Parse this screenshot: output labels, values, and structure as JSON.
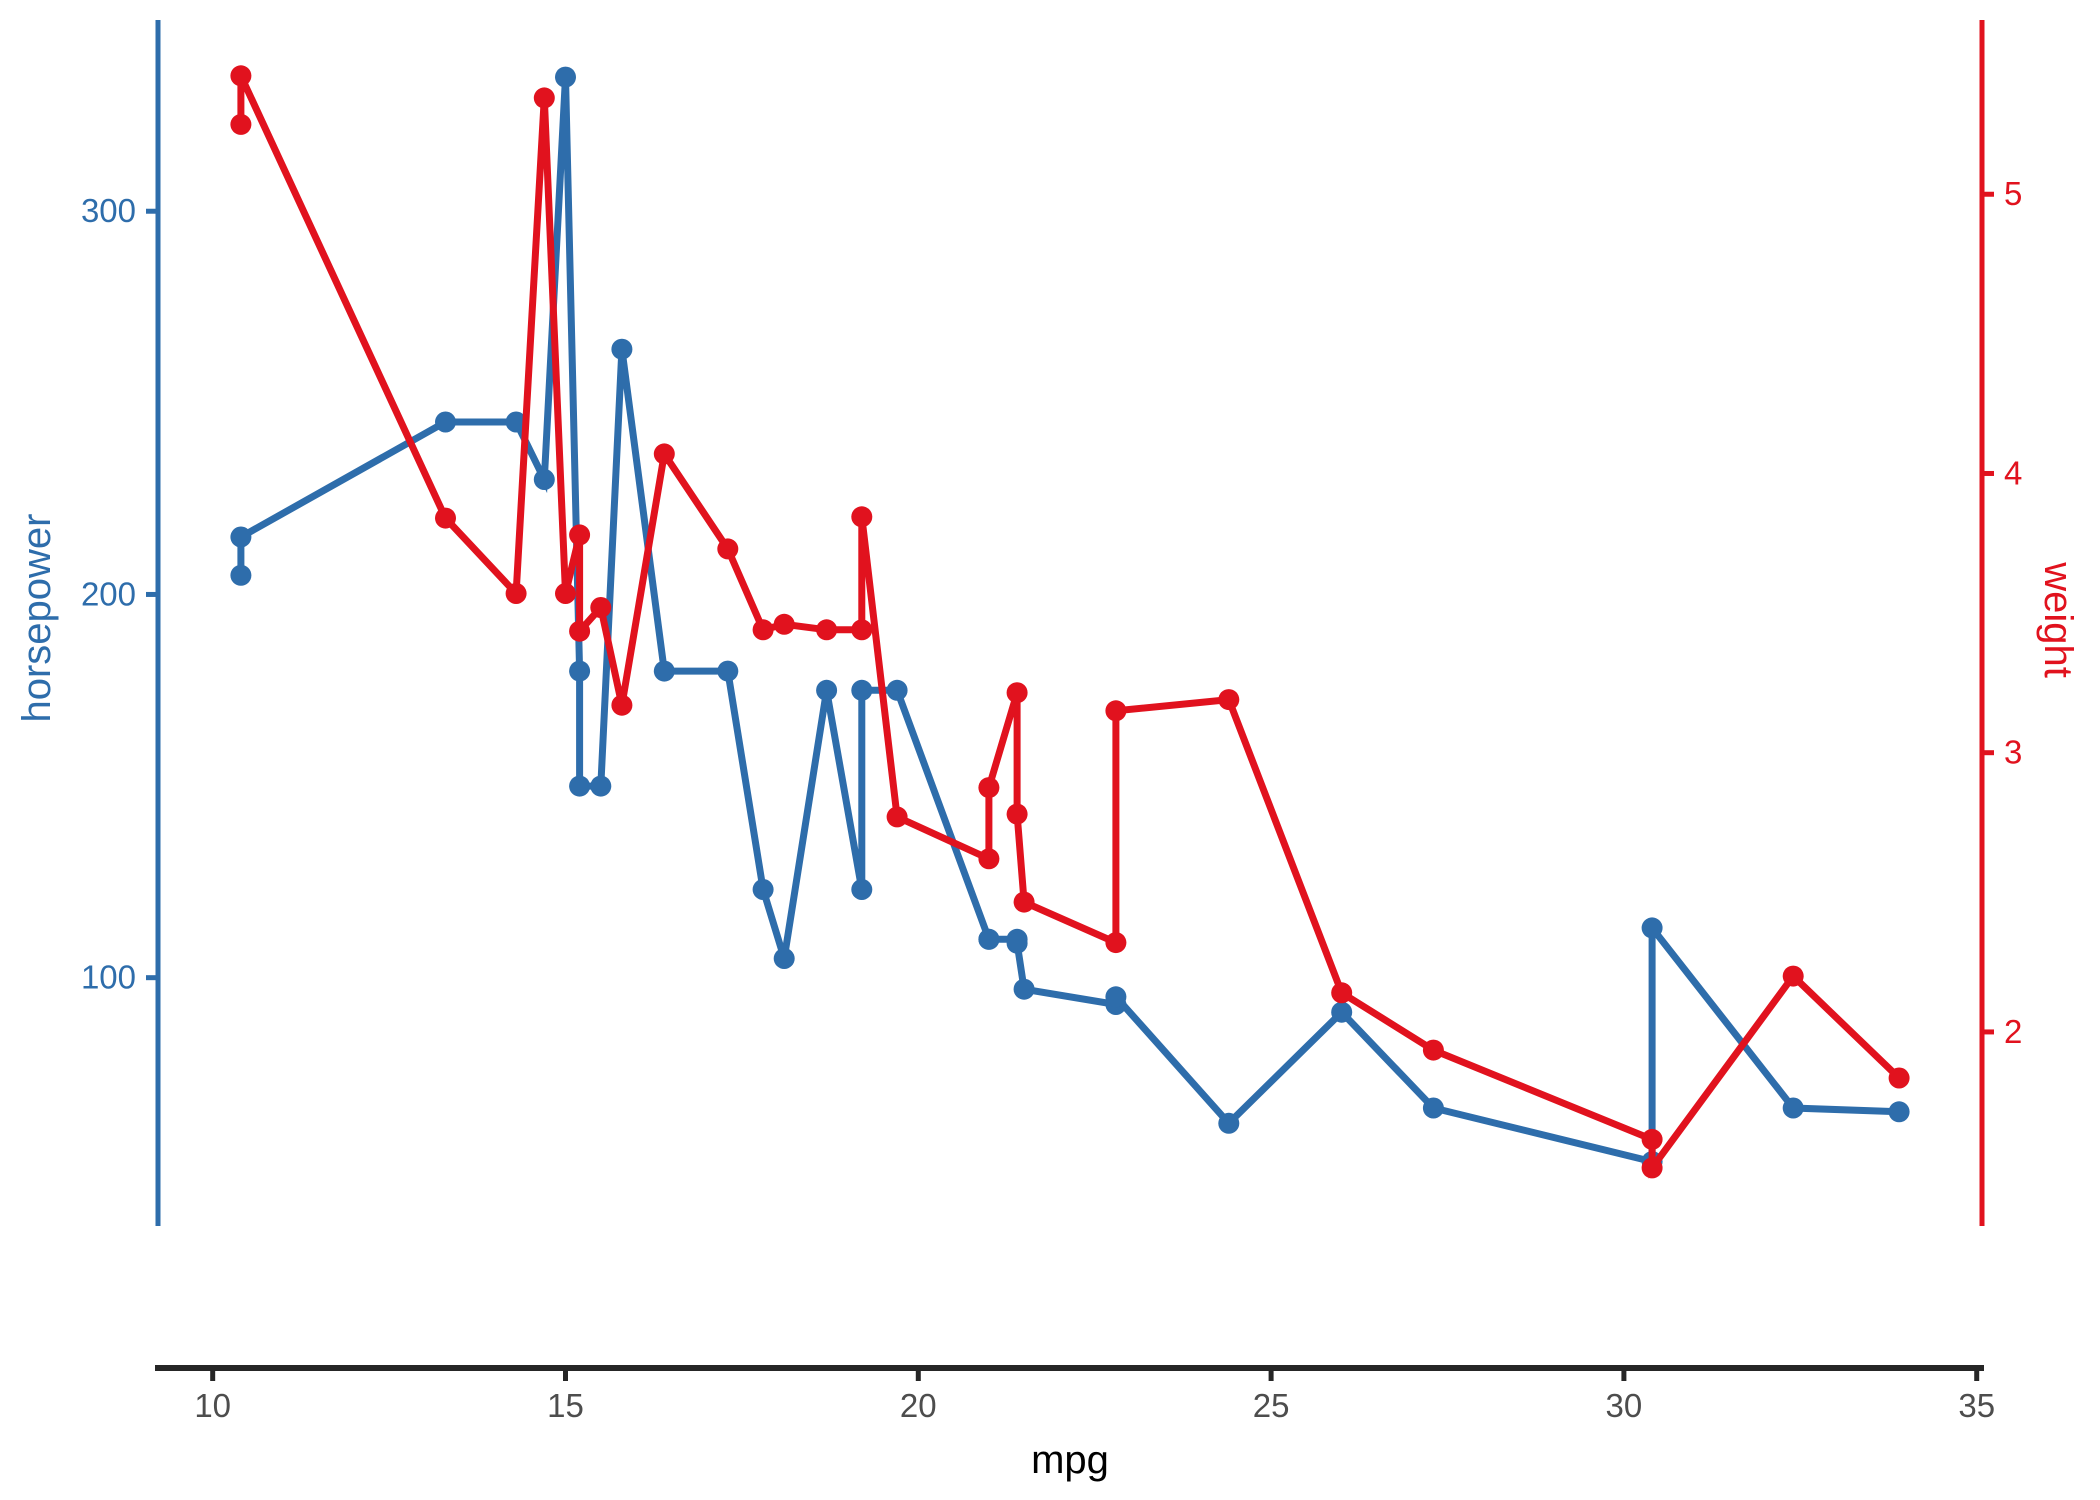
{
  "chart_data": {
    "type": "line",
    "title": "",
    "xlabel": "mpg",
    "grid": false,
    "legend": "none",
    "background": "#ffffff",
    "x_axis": {
      "label": "mpg",
      "ticks": [
        10,
        15,
        20,
        25,
        30,
        35
      ],
      "domain": [
        9.225,
        35.075
      ],
      "line_color": "#262626",
      "tick_color": "#262626",
      "tick_label_color": "#4d4d4d",
      "title_color": "#000000"
    },
    "series": [
      {
        "name": "horsepower",
        "ylabel": "horsepower",
        "axis": "left",
        "color": "#2e6dab",
        "ticks": [
          100,
          200,
          300
        ],
        "domain": [
          35.2,
          349.9
        ],
        "points": [
          [
            10.4,
            205
          ],
          [
            10.4,
            215
          ],
          [
            13.3,
            245
          ],
          [
            14.3,
            245
          ],
          [
            14.7,
            230
          ],
          [
            15.0,
            335
          ],
          [
            15.2,
            180
          ],
          [
            15.2,
            150
          ],
          [
            15.5,
            150
          ],
          [
            15.8,
            264
          ],
          [
            16.4,
            180
          ],
          [
            17.3,
            180
          ],
          [
            17.8,
            123
          ],
          [
            18.1,
            105
          ],
          [
            18.7,
            175
          ],
          [
            19.2,
            123
          ],
          [
            19.2,
            175
          ],
          [
            19.7,
            175
          ],
          [
            21.0,
            110
          ],
          [
            21.0,
            110
          ],
          [
            21.4,
            110
          ],
          [
            21.4,
            109
          ],
          [
            21.5,
            97
          ],
          [
            22.8,
            93
          ],
          [
            22.8,
            95
          ],
          [
            24.4,
            62
          ],
          [
            26.0,
            91
          ],
          [
            27.3,
            66
          ],
          [
            30.4,
            52
          ],
          [
            30.4,
            113
          ],
          [
            32.4,
            66
          ],
          [
            33.9,
            65
          ]
        ]
      },
      {
        "name": "weight",
        "ylabel": "weight",
        "axis": "right",
        "color": "#e1121e",
        "ticks": [
          2,
          3,
          4,
          5
        ],
        "domain": [
          1.305,
          5.624
        ],
        "points": [
          [
            10.4,
            5.25
          ],
          [
            10.4,
            5.424
          ],
          [
            13.3,
            3.84
          ],
          [
            14.3,
            3.57
          ],
          [
            14.7,
            5.345
          ],
          [
            15.0,
            3.57
          ],
          [
            15.2,
            3.78
          ],
          [
            15.2,
            3.435
          ],
          [
            15.5,
            3.52
          ],
          [
            15.8,
            3.17
          ],
          [
            16.4,
            4.07
          ],
          [
            17.3,
            3.73
          ],
          [
            17.8,
            3.44
          ],
          [
            18.1,
            3.46
          ],
          [
            18.7,
            3.44
          ],
          [
            19.2,
            3.44
          ],
          [
            19.2,
            3.845
          ],
          [
            19.7,
            2.77
          ],
          [
            21.0,
            2.62
          ],
          [
            21.0,
            2.875
          ],
          [
            21.4,
            3.215
          ],
          [
            21.4,
            2.78
          ],
          [
            21.5,
            2.465
          ],
          [
            22.8,
            2.32
          ],
          [
            22.8,
            3.15
          ],
          [
            24.4,
            3.19
          ],
          [
            26.0,
            2.14
          ],
          [
            27.3,
            1.935
          ],
          [
            30.4,
            1.615
          ],
          [
            30.4,
            1.513
          ],
          [
            32.4,
            2.2
          ],
          [
            33.9,
            1.835
          ]
        ]
      }
    ]
  }
}
